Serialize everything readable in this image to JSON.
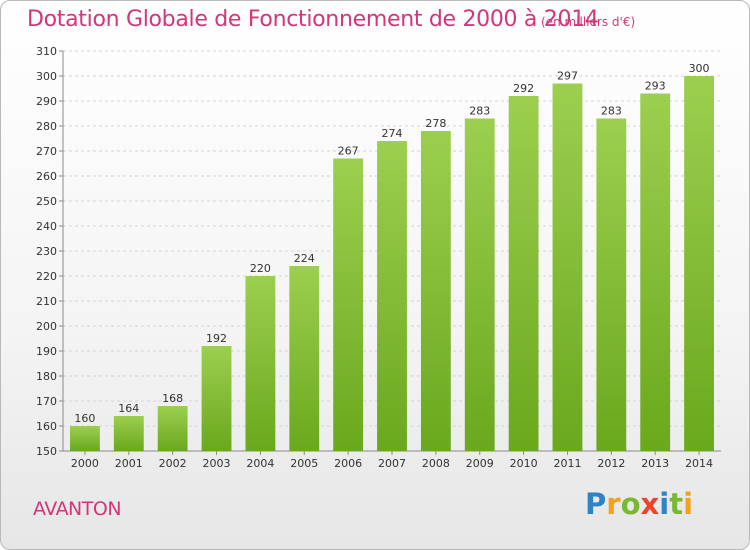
{
  "header": {
    "title": "Dotation Globale de Fonctionnement de 2000 à 2014",
    "unit": "(en milliers d'€)"
  },
  "footer": {
    "commune": "AVANTON",
    "logo": {
      "letters": [
        "P",
        "r",
        "o",
        "x",
        "i",
        "t",
        "i"
      ],
      "colors": [
        "#2e83c6",
        "#f2a31b",
        "#7bb831",
        "#e8452d",
        "#2e83c6",
        "#7bb831",
        "#f2a31b"
      ]
    }
  },
  "chart_data": {
    "type": "bar",
    "categories": [
      "2000",
      "2001",
      "2002",
      "2003",
      "2004",
      "2005",
      "2006",
      "2007",
      "2008",
      "2009",
      "2010",
      "2011",
      "2012",
      "2013",
      "2014"
    ],
    "values": [
      160,
      164,
      168,
      192,
      220,
      224,
      267,
      274,
      278,
      283,
      292,
      297,
      283,
      293,
      300
    ],
    "ylim": [
      150,
      310
    ],
    "yticks": [
      150,
      160,
      170,
      180,
      190,
      200,
      210,
      220,
      230,
      240,
      250,
      260,
      270,
      280,
      290,
      300,
      310
    ],
    "grid": true,
    "colors": {
      "bar_top": "#9ccf4f",
      "bar_bottom": "#6aa81d",
      "grid": "#d4d4d4",
      "axis": "#8a8a8a"
    }
  }
}
